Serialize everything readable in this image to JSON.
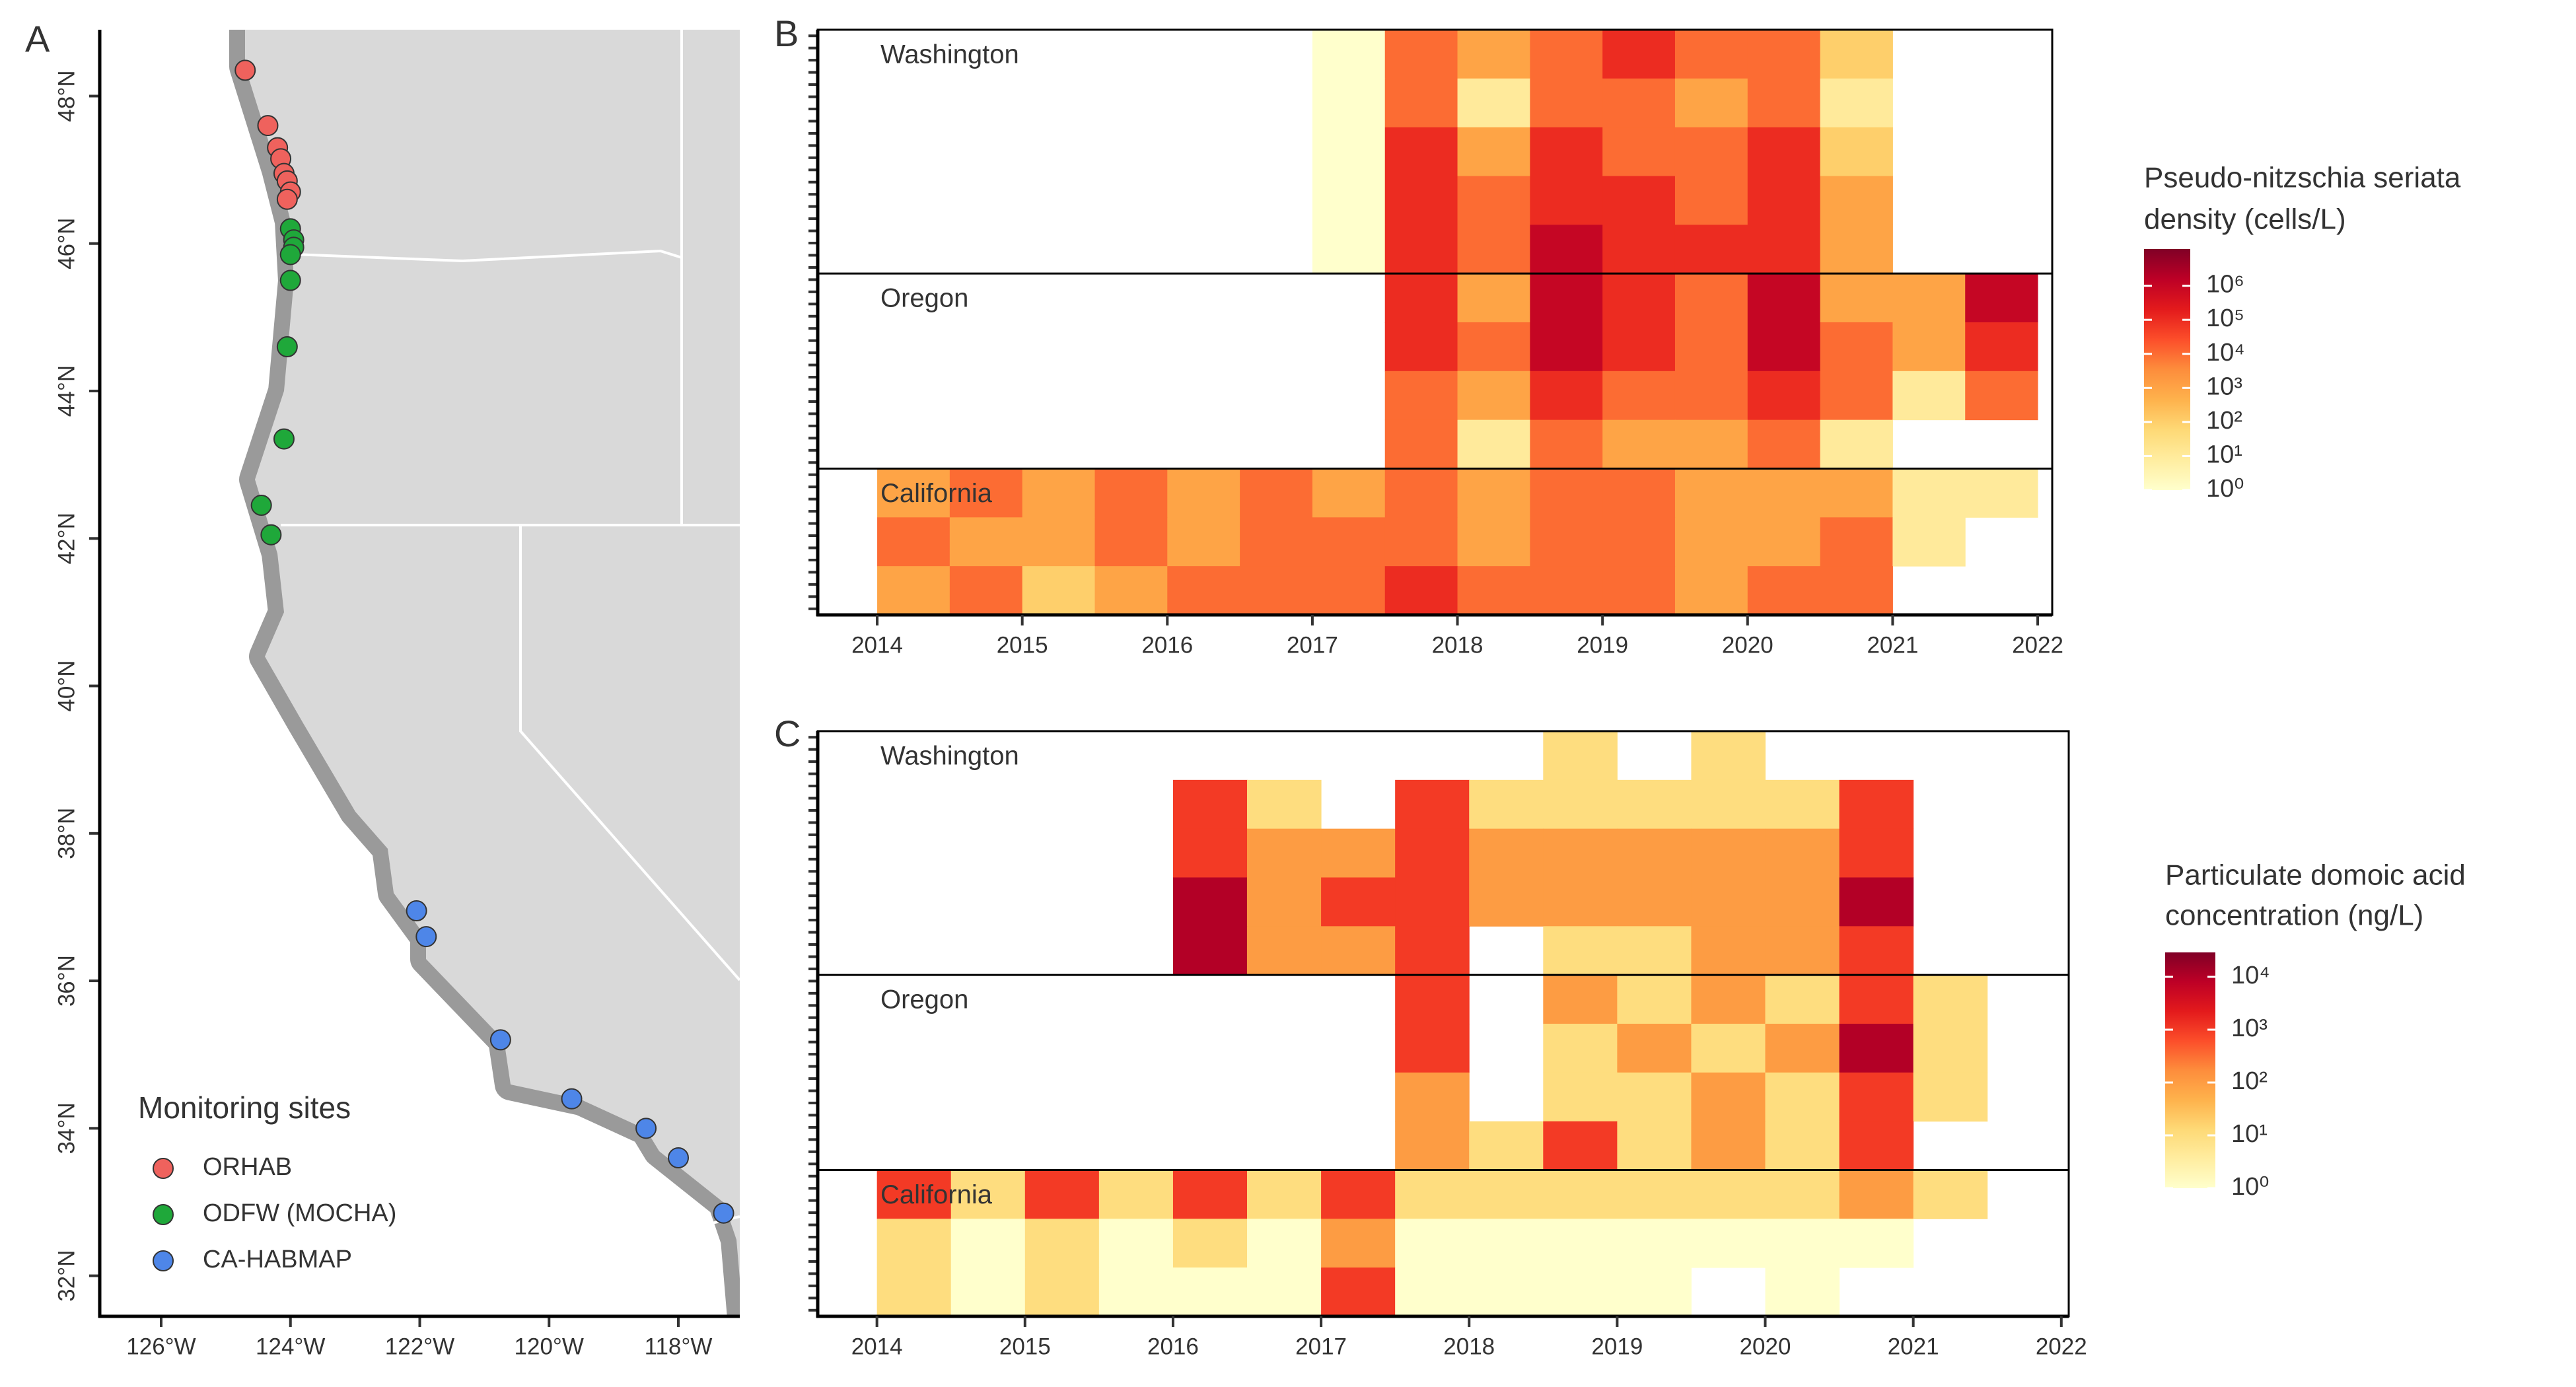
{
  "chart_data": [
    {
      "type": "scatter",
      "panel": "A",
      "xlim": [
        -126.95,
        -117.05
      ],
      "ylim": [
        31.45,
        48.9
      ],
      "xticks": [
        {
          "value": -126,
          "label": "126°W"
        },
        {
          "value": -124,
          "label": "124°W"
        },
        {
          "value": -122,
          "label": "122°W"
        },
        {
          "value": -120,
          "label": "120°W"
        },
        {
          "value": -118,
          "label": "118°W"
        }
      ],
      "yticks": [
        {
          "value": 32,
          "label": "32°N"
        },
        {
          "value": 34,
          "label": "34°N"
        },
        {
          "value": 36,
          "label": "36°N"
        },
        {
          "value": 38,
          "label": "38°N"
        },
        {
          "value": 40,
          "label": "40°N"
        },
        {
          "value": 42,
          "label": "42°N"
        },
        {
          "value": 44,
          "label": "44°N"
        },
        {
          "value": 46,
          "label": "46°N"
        },
        {
          "value": 48,
          "label": "48°N"
        }
      ],
      "legend_title": "Monitoring sites",
      "series": [
        {
          "name": "ORHAB",
          "color": "#ef625d",
          "x": [
            -124.7,
            -124.35,
            -124.2,
            -124.15,
            -124.1,
            -124.05,
            -124.0,
            -124.05
          ],
          "y": [
            48.35,
            47.6,
            47.3,
            47.15,
            46.95,
            46.85,
            46.7,
            46.6
          ]
        },
        {
          "name": "ODFW (MOCHA)",
          "color": "#1fa83a",
          "x": [
            -124.0,
            -123.95,
            -123.95,
            -124.0,
            -124.0,
            -124.05,
            -124.1,
            -124.45,
            -124.3
          ],
          "y": [
            46.2,
            46.05,
            45.95,
            45.85,
            45.5,
            44.6,
            43.35,
            42.45,
            42.05
          ]
        },
        {
          "name": "CA-HABMAP",
          "color": "#4e86e8",
          "x": [
            -122.05,
            -121.9,
            -120.75,
            -119.65,
            -118.5,
            -118.0,
            -117.3
          ],
          "y": [
            36.95,
            36.6,
            35.2,
            34.4,
            34.0,
            33.6,
            32.85
          ]
        }
      ]
    },
    {
      "type": "heatmap",
      "panel": "B",
      "xlim": [
        2013.59,
        2022.1
      ],
      "xticks": [
        2014,
        2015,
        2016,
        2017,
        2018,
        2019,
        2020,
        2021,
        2022
      ],
      "x": [
        2014,
        2014.5,
        2015,
        2015.5,
        2016,
        2016.5,
        2017,
        2017.5,
        2018,
        2018.5,
        2019,
        2019.5,
        2020,
        2020.5,
        2021,
        2021.5,
        2022
      ],
      "groups": [
        {
          "name": "Washington",
          "rows": [
            [
              null,
              null,
              null,
              null,
              null,
              null,
              1,
              10000,
              1000,
              10000,
              100000,
              10000,
              10000,
              100,
              null,
              null
            ],
            [
              null,
              null,
              null,
              null,
              null,
              null,
              1,
              10000,
              10,
              10000,
              10000,
              1000,
              10000,
              10,
              null,
              null
            ],
            [
              null,
              null,
              null,
              null,
              null,
              null,
              1,
              100000,
              1000,
              100000,
              10000,
              10000,
              100000,
              100,
              null,
              null
            ],
            [
              null,
              null,
              null,
              null,
              null,
              null,
              1,
              100000,
              10000,
              100000,
              100000,
              10000,
              100000,
              1000,
              null,
              null
            ],
            [
              null,
              null,
              null,
              null,
              null,
              null,
              1,
              100000,
              10000,
              1000000,
              100000,
              100000,
              100000,
              1000,
              null,
              null
            ]
          ]
        },
        {
          "name": "Oregon",
          "rows": [
            [
              null,
              null,
              null,
              null,
              null,
              null,
              null,
              100000,
              1000,
              1000000,
              100000,
              10000,
              1000000,
              1000,
              1000,
              1000000
            ],
            [
              null,
              null,
              null,
              null,
              null,
              null,
              null,
              100000,
              10000,
              1000000,
              100000,
              10000,
              1000000,
              10000,
              1000,
              100000
            ],
            [
              null,
              null,
              null,
              null,
              null,
              null,
              null,
              10000,
              1000,
              100000,
              10000,
              10000,
              100000,
              10000,
              10,
              10000
            ],
            [
              null,
              null,
              null,
              null,
              null,
              null,
              null,
              10000,
              10,
              10000,
              1000,
              1000,
              10000,
              10,
              null,
              null
            ]
          ]
        },
        {
          "name": "California",
          "rows": [
            [
              1000,
              10000,
              1000,
              10000,
              1000,
              10000,
              1000,
              10000,
              1000,
              10000,
              10000,
              1000,
              1000,
              1000,
              10,
              10
            ],
            [
              10000,
              1000,
              1000,
              10000,
              1000,
              10000,
              10000,
              10000,
              1000,
              10000,
              10000,
              1000,
              1000,
              10000,
              10,
              null
            ],
            [
              1000,
              10000,
              100,
              1000,
              10000,
              10000,
              10000,
              100000,
              10000,
              10000,
              10000,
              1000,
              10000,
              10000,
              null,
              null
            ]
          ]
        }
      ],
      "colorbar_title": [
        "Pseudo-nitzschia seriata",
        "density (cells/L)"
      ],
      "log": true,
      "clim": [
        1,
        12000000
      ],
      "cticks": [
        {
          "value": 1,
          "label": "10⁰"
        },
        {
          "value": 10,
          "label": "10¹"
        },
        {
          "value": 100,
          "label": "10²"
        },
        {
          "value": 1000,
          "label": "10³"
        },
        {
          "value": 10000,
          "label": "10⁴"
        },
        {
          "value": 100000,
          "label": "10⁵"
        },
        {
          "value": 1000000,
          "label": "10⁶"
        }
      ],
      "colorscale": [
        "#ffffcc",
        "#ffeda0",
        "#fed976",
        "#feb24c",
        "#fd8d3c",
        "#fc4e2a",
        "#e31a1c",
        "#bd0026",
        "#800026"
      ]
    },
    {
      "type": "heatmap",
      "panel": "C",
      "xlim": [
        2013.6,
        2022.05
      ],
      "xticks": [
        2014,
        2015,
        2016,
        2017,
        2018,
        2019,
        2020,
        2021,
        2022
      ],
      "x": [
        2014,
        2014.5,
        2015,
        2015.5,
        2016,
        2016.5,
        2017,
        2017.5,
        2018,
        2018.5,
        2019,
        2019.5,
        2020,
        2020.5,
        2021,
        2021.5,
        2022
      ],
      "groups": [
        {
          "name": "Washington",
          "rows": [
            [
              null,
              null,
              null,
              null,
              null,
              null,
              null,
              null,
              null,
              10,
              null,
              10,
              null,
              null,
              null,
              null
            ],
            [
              null,
              null,
              null,
              null,
              1000,
              10,
              null,
              1000,
              10,
              10,
              10,
              10,
              10,
              1000,
              null,
              null
            ],
            [
              null,
              null,
              null,
              null,
              1000,
              100,
              100,
              1000,
              100,
              100,
              100,
              100,
              100,
              1000,
              null,
              null
            ],
            [
              null,
              null,
              null,
              null,
              10000,
              100,
              1000,
              1000,
              100,
              100,
              100,
              100,
              100,
              10000,
              null,
              null
            ],
            [
              null,
              null,
              null,
              null,
              10000,
              100,
              100,
              1000,
              null,
              10,
              10,
              100,
              100,
              1000,
              null,
              null
            ]
          ]
        },
        {
          "name": "Oregon",
          "rows": [
            [
              null,
              null,
              null,
              null,
              null,
              null,
              null,
              1000,
              null,
              100,
              10,
              100,
              10,
              1000,
              10,
              null
            ],
            [
              null,
              null,
              null,
              null,
              null,
              null,
              null,
              1000,
              null,
              10,
              100,
              10,
              100,
              10000,
              10,
              null
            ],
            [
              null,
              null,
              null,
              null,
              null,
              null,
              null,
              100,
              null,
              10,
              10,
              100,
              10,
              1000,
              10,
              null
            ],
            [
              null,
              null,
              null,
              null,
              null,
              null,
              null,
              100,
              10,
              1000,
              10,
              100,
              10,
              1000,
              null,
              null
            ]
          ]
        },
        {
          "name": "California",
          "rows": [
            [
              1000,
              10,
              1000,
              10,
              1000,
              10,
              1000,
              10,
              10,
              10,
              10,
              10,
              10,
              100,
              10,
              null
            ],
            [
              10,
              1,
              10,
              1,
              10,
              1,
              100,
              1,
              1,
              1,
              1,
              1,
              1,
              1,
              null,
              null
            ],
            [
              10,
              1,
              10,
              1,
              1,
              1,
              1000,
              1,
              1,
              1,
              1,
              null,
              1,
              null,
              null,
              null
            ]
          ]
        }
      ],
      "colorbar_title": [
        "Particulate domoic acid",
        "concentration (ng/L)"
      ],
      "log": true,
      "clim": [
        1,
        29000
      ],
      "cticks": [
        {
          "value": 1,
          "label": "10⁰"
        },
        {
          "value": 10,
          "label": "10¹"
        },
        {
          "value": 100,
          "label": "10²"
        },
        {
          "value": 1000,
          "label": "10³"
        },
        {
          "value": 10000,
          "label": "10⁴"
        }
      ],
      "colorscale": [
        "#ffffcc",
        "#ffeda0",
        "#fed976",
        "#feb24c",
        "#fd8d3c",
        "#fc4e2a",
        "#e31a1c",
        "#bd0026",
        "#800026"
      ]
    }
  ]
}
